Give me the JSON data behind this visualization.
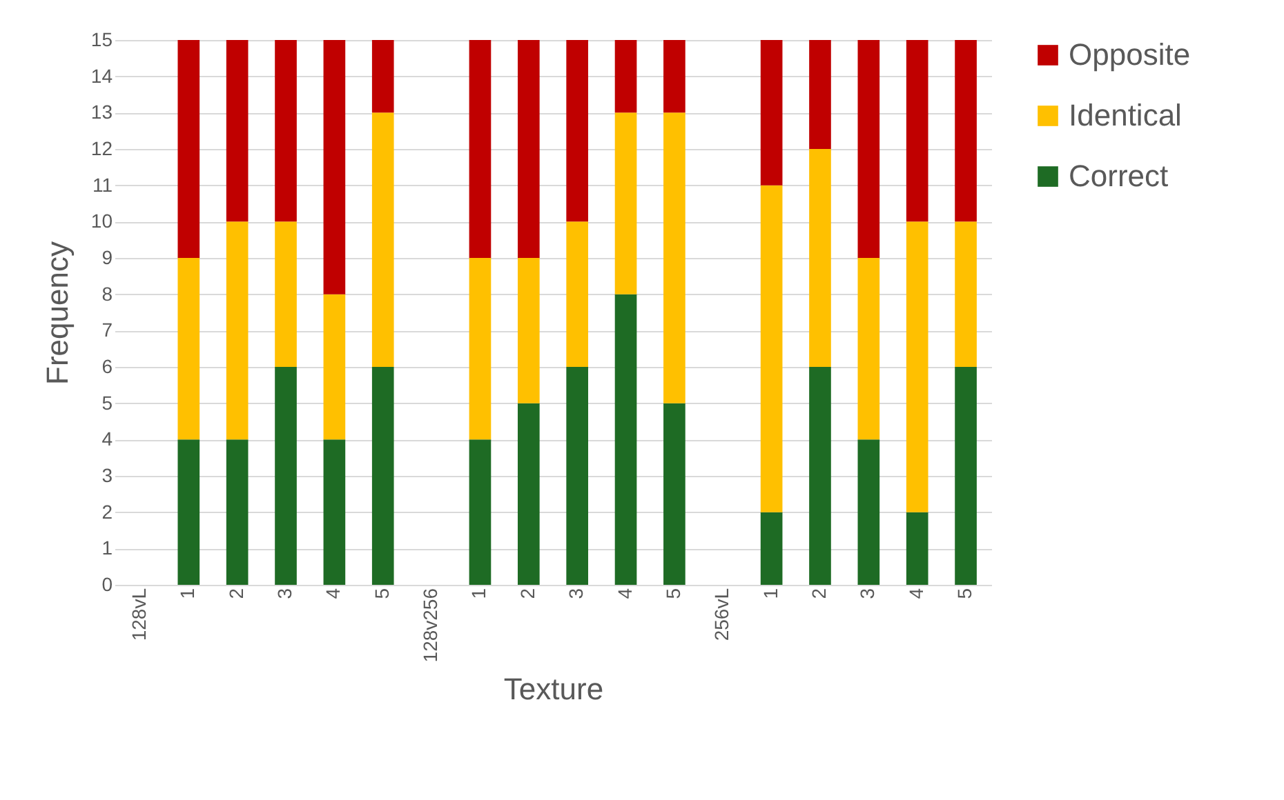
{
  "chart_data": {
    "type": "bar",
    "stacked": true,
    "xlabel": "Texture",
    "ylabel": "Frequency",
    "categories": [
      "128vL",
      "1",
      "2",
      "3",
      "4",
      "5",
      "128v256",
      "1",
      "2",
      "3",
      "4",
      "5",
      "256vL",
      "1",
      "2",
      "3",
      "4",
      "5"
    ],
    "series": [
      {
        "name": "Correct",
        "color": "#1e6b24",
        "values": [
          null,
          4,
          4,
          6,
          4,
          6,
          null,
          4,
          5,
          6,
          8,
          5,
          null,
          2,
          6,
          4,
          2,
          6
        ]
      },
      {
        "name": "Identical",
        "color": "#ffc000",
        "values": [
          null,
          5,
          6,
          4,
          4,
          7,
          null,
          5,
          4,
          4,
          5,
          8,
          null,
          9,
          6,
          5,
          8,
          4
        ]
      },
      {
        "name": "Opposite",
        "color": "#c00000",
        "values": [
          null,
          6,
          5,
          5,
          7,
          2,
          null,
          6,
          6,
          5,
          2,
          2,
          null,
          4,
          3,
          6,
          5,
          5
        ]
      }
    ],
    "ylim": [
      0,
      15
    ],
    "yticks": [
      0,
      1,
      2,
      3,
      4,
      5,
      6,
      7,
      8,
      9,
      10,
      11,
      12,
      13,
      14,
      15
    ],
    "grid": "y",
    "legend": "right"
  }
}
